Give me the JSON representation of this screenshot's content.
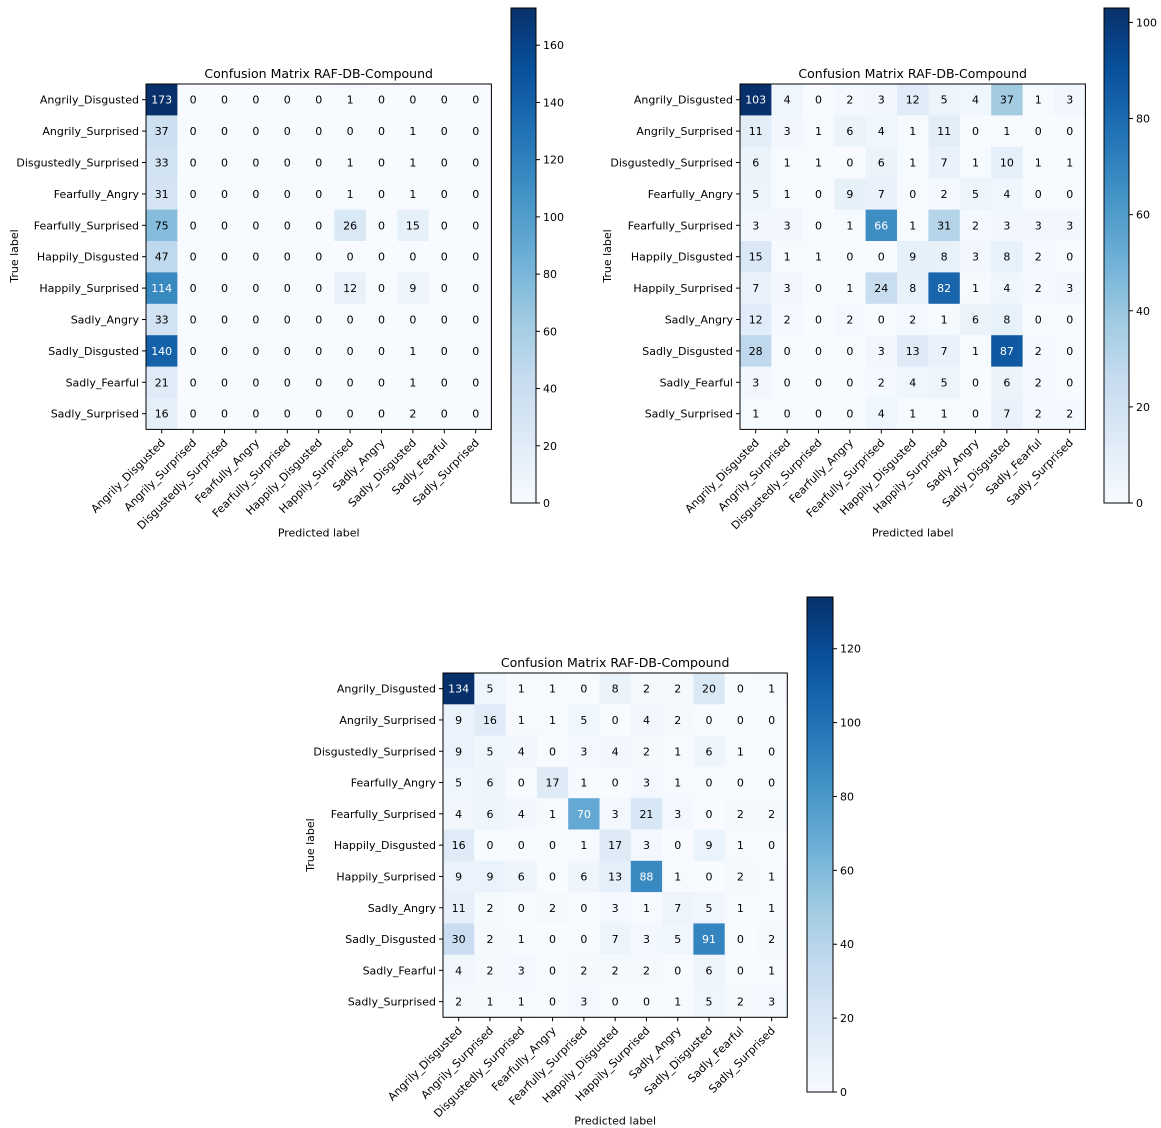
{
  "chart_data": [
    {
      "type": "heatmap",
      "title": "Confusion Matrix RAF-DB-Compound",
      "xlabel": "Predicted label",
      "ylabel": "True label",
      "labels": [
        "Angrily_Disgusted",
        "Angrily_Surprised",
        "Disgustedly_Surprised",
        "Fearfully_Angry",
        "Fearfully_Surprised",
        "Happily_Disgusted",
        "Happily_Surprised",
        "Sadly_Angry",
        "Sadly_Disgusted",
        "Sadly_Fearful",
        "Sadly_Surprised"
      ],
      "matrix": [
        [
          173,
          0,
          0,
          0,
          0,
          0,
          1,
          0,
          0,
          0,
          0
        ],
        [
          37,
          0,
          0,
          0,
          0,
          0,
          0,
          0,
          1,
          0,
          0
        ],
        [
          33,
          0,
          0,
          0,
          0,
          0,
          1,
          0,
          1,
          0,
          0
        ],
        [
          31,
          0,
          0,
          0,
          0,
          0,
          1,
          0,
          1,
          0,
          0
        ],
        [
          75,
          0,
          0,
          0,
          0,
          0,
          26,
          0,
          15,
          0,
          0
        ],
        [
          47,
          0,
          0,
          0,
          0,
          0,
          0,
          0,
          0,
          0,
          0
        ],
        [
          114,
          0,
          0,
          0,
          0,
          0,
          12,
          0,
          9,
          0,
          0
        ],
        [
          33,
          0,
          0,
          0,
          0,
          0,
          0,
          0,
          0,
          0,
          0
        ],
        [
          140,
          0,
          0,
          0,
          0,
          0,
          0,
          0,
          1,
          0,
          0
        ],
        [
          21,
          0,
          0,
          0,
          0,
          0,
          0,
          0,
          1,
          0,
          0
        ],
        [
          16,
          0,
          0,
          0,
          0,
          0,
          0,
          0,
          2,
          0,
          0
        ]
      ],
      "colorbar": {
        "min": 0,
        "max": 173,
        "ticks": [
          0,
          20,
          40,
          60,
          80,
          100,
          120,
          140,
          160
        ]
      }
    },
    {
      "type": "heatmap",
      "title": "Confusion Matrix RAF-DB-Compound",
      "xlabel": "Predicted label",
      "ylabel": "True label",
      "labels": [
        "Angrily_Disgusted",
        "Angrily_Surprised",
        "Disgustedly_Surprised",
        "Fearfully_Angry",
        "Fearfully_Surprised",
        "Happily_Disgusted",
        "Happily_Surprised",
        "Sadly_Angry",
        "Sadly_Disgusted",
        "Sadly_Fearful",
        "Sadly_Surprised"
      ],
      "matrix": [
        [
          103,
          4,
          0,
          2,
          3,
          12,
          5,
          4,
          37,
          1,
          3
        ],
        [
          11,
          3,
          1,
          6,
          4,
          1,
          11,
          0,
          1,
          0,
          0
        ],
        [
          6,
          1,
          1,
          0,
          6,
          1,
          7,
          1,
          10,
          1,
          1
        ],
        [
          5,
          1,
          0,
          9,
          7,
          0,
          2,
          5,
          4,
          0,
          0
        ],
        [
          3,
          3,
          0,
          1,
          66,
          1,
          31,
          2,
          3,
          3,
          3
        ],
        [
          15,
          1,
          1,
          0,
          0,
          9,
          8,
          3,
          8,
          2,
          0
        ],
        [
          7,
          3,
          0,
          1,
          24,
          8,
          82,
          1,
          4,
          2,
          3
        ],
        [
          12,
          2,
          0,
          2,
          0,
          2,
          1,
          6,
          8,
          0,
          0
        ],
        [
          28,
          0,
          0,
          0,
          3,
          13,
          7,
          1,
          87,
          2,
          0
        ],
        [
          3,
          0,
          0,
          0,
          2,
          4,
          5,
          0,
          6,
          2,
          0
        ],
        [
          1,
          0,
          0,
          0,
          4,
          1,
          1,
          0,
          7,
          2,
          2
        ]
      ],
      "colorbar": {
        "min": 0,
        "max": 103,
        "ticks": [
          0,
          20,
          40,
          60,
          80,
          100
        ]
      }
    },
    {
      "type": "heatmap",
      "title": "Confusion Matrix RAF-DB-Compound",
      "xlabel": "Predicted label",
      "ylabel": "True label",
      "labels": [
        "Angrily_Disgusted",
        "Angrily_Surprised",
        "Disgustedly_Surprised",
        "Fearfully_Angry",
        "Fearfully_Surprised",
        "Happily_Disgusted",
        "Happily_Surprised",
        "Sadly_Angry",
        "Sadly_Disgusted",
        "Sadly_Fearful",
        "Sadly_Surprised"
      ],
      "matrix": [
        [
          134,
          5,
          1,
          1,
          0,
          8,
          2,
          2,
          20,
          0,
          1
        ],
        [
          9,
          16,
          1,
          1,
          5,
          0,
          4,
          2,
          0,
          0,
          0
        ],
        [
          9,
          5,
          4,
          0,
          3,
          4,
          2,
          1,
          6,
          1,
          0
        ],
        [
          5,
          6,
          0,
          17,
          1,
          0,
          3,
          1,
          0,
          0,
          0
        ],
        [
          4,
          6,
          4,
          1,
          70,
          3,
          21,
          3,
          0,
          2,
          2
        ],
        [
          16,
          0,
          0,
          0,
          1,
          17,
          3,
          0,
          9,
          1,
          0
        ],
        [
          9,
          9,
          6,
          0,
          6,
          13,
          88,
          1,
          0,
          2,
          1
        ],
        [
          11,
          2,
          0,
          2,
          0,
          3,
          1,
          7,
          5,
          1,
          1
        ],
        [
          30,
          2,
          1,
          0,
          0,
          7,
          3,
          5,
          91,
          0,
          2
        ],
        [
          4,
          2,
          3,
          0,
          2,
          2,
          2,
          0,
          6,
          0,
          1
        ],
        [
          2,
          1,
          1,
          0,
          3,
          0,
          0,
          1,
          5,
          2,
          3
        ]
      ],
      "colorbar": {
        "min": 0,
        "max": 134,
        "ticks": [
          0,
          20,
          40,
          60,
          80,
          100,
          120
        ]
      }
    }
  ]
}
